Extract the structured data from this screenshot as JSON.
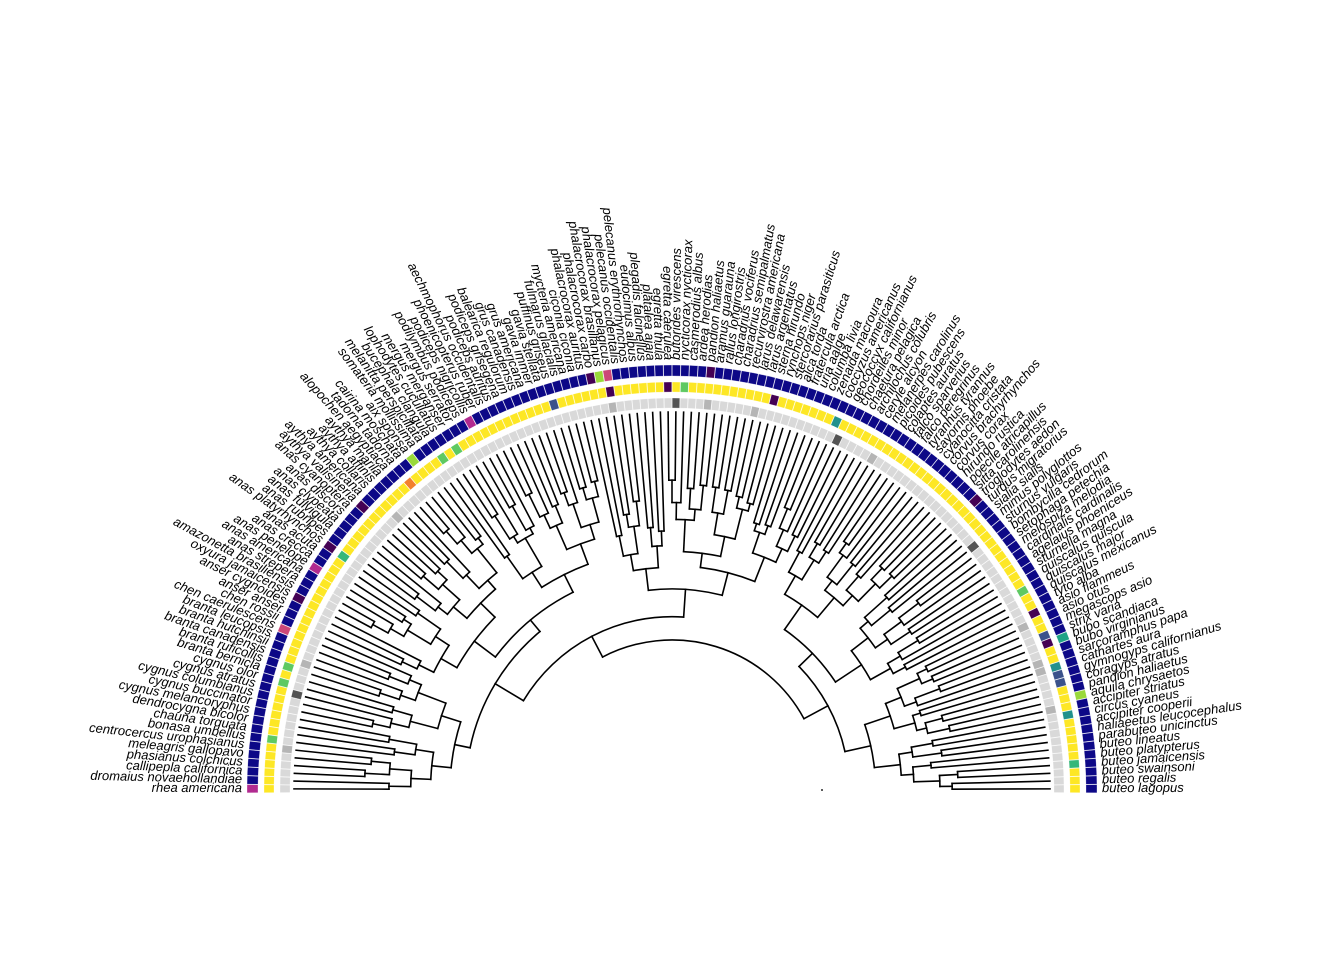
{
  "tips": [
    "rhea americana",
    "dromaius novaehollandiae",
    "callipepla californica",
    "phasianus colchicus",
    "meleagris gallopavo",
    "centrocercus urophasianus",
    "bonasa umbellus",
    "chauna torquata",
    "dendrocygna bicolor",
    "cygnus melancoryphus",
    "cygnus buccinator",
    "cygnus columbianus",
    "cygnus atratus",
    "cygnus olor",
    "branta bernicla",
    "branta ruficollis",
    "branta canadensis",
    "branta hutchinsii",
    "branta leucopsis",
    "chen caerulescens",
    "chen rossii",
    "anser anser",
    "anser cygnoides",
    "oxyura jamaicensis",
    "amazonetta brasiliensis",
    "anas strepera",
    "anas americana",
    "anas penelope",
    "anas crecca",
    "anas acuta",
    "anas platyrhynchos",
    "anas rubripes",
    "anas fulvigula",
    "anas clypeata",
    "anas discors",
    "anas cyanoptera",
    "aythya valisineria",
    "aythya americana",
    "aythya collaris",
    "aythya affinis",
    "aythya marila",
    "alopochen aegyptiaca",
    "tadorna tadorna",
    "cairina moschata",
    "aix sponsa",
    "somateria mollissima",
    "melanitta perspicillata",
    "bucephala clangula",
    "lophodytes cucullatus",
    "mergus merganser",
    "mergus serrator",
    "podilymbus podiceps",
    "podiceps nigricollis",
    "phoenicopterus ruber",
    "aechmophorus occidentalis",
    "podiceps auritus",
    "podiceps grisegena",
    "balearica regulorum",
    "grus canadensis",
    "grus americana",
    "gavia immer",
    "gavia stellata",
    "puffinus griseus",
    "fulmarus glacialis",
    "mycteria americana",
    "ciconia ciconia",
    "phalacrocorax auritus",
    "phalacrocorax carbo",
    "phalacrocorax brasilianus",
    "phalacrocorax pelagicus",
    "pelecanus occidentalis",
    "pelecanus erythrorhynchos",
    "eudocimus albus",
    "plegadis falcinellus",
    "platalea ajaja",
    "egretta thula",
    "egretta caerulea",
    "butorides virescens",
    "nycticorax nycticorax",
    "casmerodius albus",
    "ardea herodias",
    "pandion haliaetus",
    "aramus guarauna",
    "rallus longirostris",
    "charadrius vociferus",
    "charadrius semipalmatus",
    "recurvirostra americana",
    "larus delawarensis",
    "larus argentatus",
    "sterna hirundo",
    "rynchops niger",
    "stercorarius parasiticus",
    "alca torda",
    "fratercula arctica",
    "uria aalge",
    "columba livia",
    "zenaida macroura",
    "coccyzus americanus",
    "geococcyx californianus",
    "chordeiles minor",
    "chaetura pelagica",
    "archilochus colubris",
    "ceryle alcyon",
    "melanerpes carolinus",
    "picoides pubescens",
    "colaptes auratus",
    "falco sparverius",
    "falco peregrinus",
    "tyrannus tyrannus",
    "sayornis phoebe",
    "cyanocitta cristata",
    "corvus brachyrhynchos",
    "corvus corax",
    "hirundo rustica",
    "poecile atricapillus",
    "sitta carolinensis",
    "troglodytes aedon",
    "turdus migratorius",
    "sialia sialis",
    "mimus polyglottos",
    "sturnus vulgaris",
    "bombycilla cedrorum",
    "setophaga petechia",
    "melospiza melodia",
    "cardinalis cardinalis",
    "agelaius phoeniceus",
    "sturnella magna",
    "quiscalus quiscula",
    "quiscalus major",
    "quiscalus mexicanus",
    "tyto alba",
    "asio flammeus",
    "asio otus",
    "megascops asio",
    "strix varia",
    "bubo scandiaca",
    "bubo virginianus",
    "sarcoramphus papa",
    "cathartes aura",
    "gymnogyps californianus",
    "coragyps atratus",
    "pandion haliaetus",
    "aquila chrysaetos",
    "accipiter striatus",
    "circus cyaneus",
    "accipiter cooperii",
    "haliaeetus leucocephalus",
    "parabuteo unicinctus",
    "buteo lineatus",
    "buteo platypterus",
    "buteo jamaicensis",
    "buteo swainsoni",
    "buteo regalis",
    "buteo lagopus"
  ],
  "rings": [
    {
      "name": "ring-inner",
      "colors": [
        "#d9d9d9",
        "#b5b5b5",
        "#545454"
      ]
    },
    {
      "name": "ring-middle",
      "colors": [
        "#fde725",
        "#3b528b",
        "#440154",
        "#5ec962",
        "#21918c",
        "#f2812f",
        "#35b779"
      ]
    },
    {
      "name": "ring-outer",
      "colors": [
        "#0d0887",
        "#b12a90",
        "#9ad93a",
        "#cc4778",
        "#440154",
        "#20a386"
      ]
    }
  ]
}
